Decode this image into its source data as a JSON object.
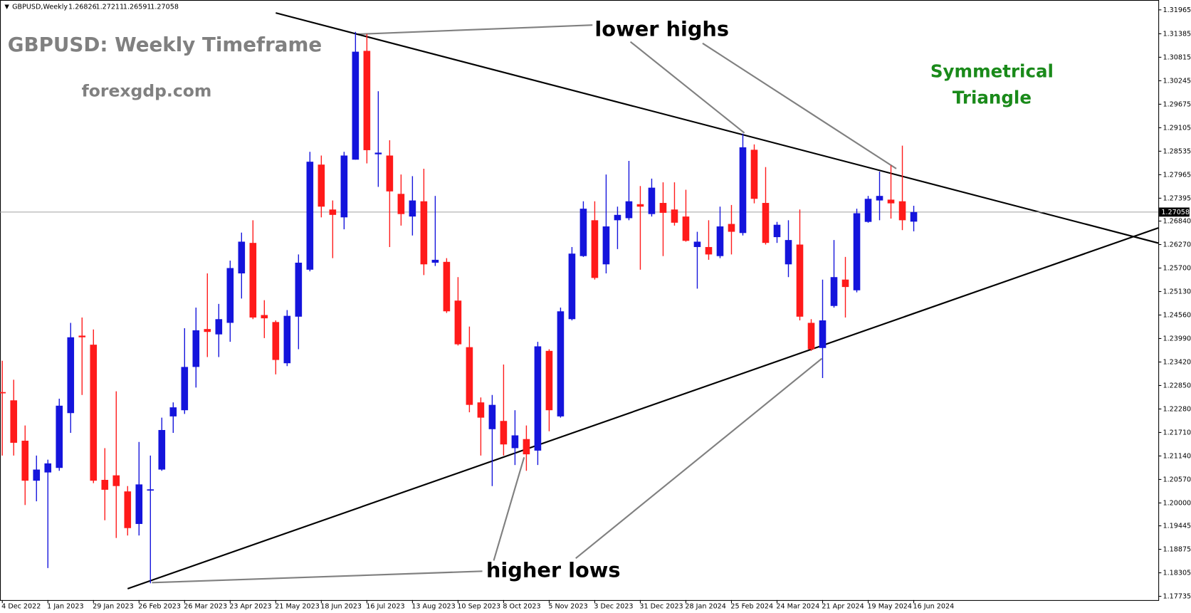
{
  "header": {
    "symbol": "GBPUSD,Weekly",
    "open": 1.26826,
    "high": 1.27211,
    "low": 1.26591,
    "close": 1.27058
  },
  "chart_data": {
    "type": "candlestick",
    "title": "GBPUSD: Weekly Timeframe",
    "subtitle": "forexgdp.com",
    "annotations": {
      "upper": "lower highs",
      "lower": "higher lows",
      "pattern": [
        "Symmetrical",
        "Triangle"
      ]
    },
    "categories": [
      "4 Dec 2022",
      null,
      null,
      null,
      "1 Jan 2023",
      null,
      null,
      null,
      "29 Jan 2023",
      null,
      null,
      null,
      "26 Feb 2023",
      null,
      null,
      null,
      "26 Mar 2023",
      null,
      null,
      null,
      "23 Apr 2023",
      null,
      null,
      null,
      "21 May 2023",
      null,
      null,
      null,
      "18 Jun 2023",
      null,
      null,
      null,
      "16 Jul 2023",
      null,
      null,
      null,
      "13 Aug 2023",
      null,
      null,
      null,
      "10 Sep 2023",
      null,
      null,
      null,
      "8 Oct 2023",
      null,
      null,
      null,
      "5 Nov 2023",
      null,
      null,
      null,
      "3 Dec 2023",
      null,
      null,
      null,
      "31 Dec 2023",
      null,
      null,
      null,
      "28 Jan 2024",
      null,
      null,
      null,
      "25 Feb 2024",
      null,
      null,
      null,
      "24 Mar 2024",
      null,
      null,
      null,
      "21 Apr 2024",
      null,
      null,
      null,
      "19 May 2024",
      null,
      null,
      null,
      "16 Jun 2024"
    ],
    "open": [
      1.2269,
      1.2249,
      1.2151,
      1.2054,
      1.2074,
      1.2085,
      1.2218,
      1.2406,
      1.2384,
      1.2056,
      1.2067,
      1.2028,
      1.1949,
      1.203,
      1.2081,
      1.221,
      1.2225,
      1.233,
      1.2422,
      1.2409,
      1.2437,
      1.2557,
      1.2631,
      1.2456,
      1.2439,
      1.2339,
      1.2452,
      1.2566,
      1.2821,
      1.2712,
      1.2693,
      1.2833,
      1.3097,
      1.2846,
      1.2843,
      1.275,
      1.2695,
      1.2732,
      1.2583,
      1.2585,
      1.2491,
      1.2378,
      1.2244,
      1.2179,
      1.2199,
      1.2133,
      1.2155,
      1.2127,
      1.2369,
      1.221,
      1.2446,
      1.2599,
      1.2686,
      1.2579,
      1.2686,
      1.2691,
      1.2725,
      1.2701,
      1.2728,
      1.2712,
      1.2695,
      1.2621,
      1.2621,
      1.2599,
      1.2677,
      1.2655,
      1.2857,
      1.2728,
      1.2645,
      1.2579,
      1.2627,
      1.2437,
      1.2376,
      1.2478,
      1.2542,
      1.2516,
      1.2682,
      1.2734,
      1.2736,
      1.2732,
      1.26826
    ],
    "high": [
      1.2345,
      1.2299,
      1.2188,
      1.2115,
      1.2105,
      1.2253,
      1.2437,
      1.245,
      1.2421,
      1.2133,
      1.2271,
      1.2041,
      1.2148,
      1.2115,
      1.2207,
      1.2244,
      1.2424,
      1.2474,
      1.2557,
      1.2483,
      1.2588,
      1.2656,
      1.2686,
      1.2492,
      1.2443,
      1.2468,
      1.2603,
      1.2852,
      1.2843,
      1.2734,
      1.2852,
      1.3143,
      1.3138,
      1.2999,
      1.288,
      1.2797,
      1.2793,
      1.2811,
      1.2745,
      1.2594,
      1.2548,
      1.2428,
      1.2256,
      1.2262,
      1.2336,
      1.2225,
      1.2188,
      1.2391,
      1.2373,
      1.2474,
      1.2621,
      1.2732,
      1.2732,
      1.2797,
      1.2719,
      1.283,
      1.2769,
      1.2787,
      1.2778,
      1.2778,
      1.276,
      1.2658,
      1.2686,
      1.2719,
      1.2723,
      1.2896,
      1.287,
      1.2815,
      1.2682,
      1.2686,
      1.2712,
      1.2446,
      1.2542,
      1.2638,
      1.2597,
      1.2714,
      1.2745,
      1.2804,
      1.2819,
      1.2867,
      1.27211
    ],
    "low": [
      1.2115,
      1.2115,
      1.1995,
      1.2004,
      1.1842,
      1.2078,
      1.217,
      1.2262,
      1.2048,
      1.1958,
      1.1915,
      1.1921,
      1.1921,
      1.1805,
      1.2078,
      1.217,
      1.2216,
      1.228,
      1.2354,
      1.2354,
      1.2391,
      1.2496,
      1.2446,
      1.24,
      1.2312,
      1.2332,
      1.2373,
      1.2562,
      1.2693,
      1.2594,
      1.2664,
      1.2833,
      1.2824,
      1.2767,
      1.2621,
      1.2673,
      1.2649,
      1.2553,
      1.2575,
      1.2461,
      1.2382,
      1.222,
      1.2115,
      1.2041,
      1.2115,
      1.2092,
      1.2078,
      1.2092,
      1.2174,
      1.2207,
      1.2443,
      1.2597,
      1.2542,
      1.2557,
      1.2616,
      1.2686,
      1.2566,
      1.2695,
      1.2599,
      1.2673,
      1.2634,
      1.252,
      1.259,
      1.2594,
      1.2603,
      1.2649,
      1.2727,
      1.2627,
      1.2631,
      1.2548,
      1.2443,
      1.2369,
      1.2303,
      1.2474,
      1.245,
      1.2511,
      1.268,
      1.2686,
      1.269,
      1.2662,
      1.26591
    ],
    "close": [
      1.2266,
      1.2146,
      1.2054,
      1.2081,
      1.2096,
      1.2236,
      1.2402,
      1.2402,
      1.2054,
      1.2032,
      1.2041,
      1.1939,
      1.2045,
      1.2033,
      1.2177,
      1.2232,
      1.233,
      1.2419,
      1.2415,
      1.2446,
      1.257,
      1.2634,
      1.245,
      1.2448,
      1.2347,
      1.2454,
      1.2583,
      1.2828,
      1.2719,
      1.2699,
      1.2843,
      1.3095,
      1.2856,
      1.285,
      1.2756,
      1.2701,
      1.2734,
      1.2579,
      1.259,
      1.2465,
      1.2385,
      1.2238,
      1.2207,
      1.2238,
      1.2142,
      1.2164,
      1.2118,
      1.238,
      1.2225,
      1.2465,
      1.2605,
      1.2714,
      1.2546,
      1.2671,
      1.2699,
      1.2732,
      1.2719,
      1.2765,
      1.2704,
      1.268,
      1.2636,
      1.2634,
      1.2603,
      1.2671,
      1.2658,
      1.2863,
      1.2738,
      1.2631,
      1.2675,
      1.2638,
      1.2452,
      1.2373,
      1.2443,
      1.2548,
      1.2524,
      1.2703,
      1.2738,
      1.2745,
      1.2727,
      1.2686,
      1.27058
    ],
    "up_color": "#1414dc",
    "down_color": "#ff1a1a",
    "last_price": 1.27058,
    "ylim": [
      1.17643,
      1.32112
    ],
    "yticks": [
      1.31965,
      1.31385,
      1.30815,
      1.30245,
      1.29675,
      1.29105,
      1.28535,
      1.27965,
      1.27395,
      {
        "value": 1.2684,
        "label": "1.26840"
      },
      {
        "value": 1.2627,
        "label": "1.26270"
      },
      {
        "value": 1.257,
        "label": "1.25700"
      },
      {
        "value": 1.2513,
        "label": "1.25130"
      },
      {
        "value": 1.2456,
        "label": "1.24560"
      },
      {
        "value": 1.2399,
        "label": "1.23990"
      },
      {
        "value": 1.2342,
        "label": "1.23420"
      },
      {
        "value": 1.2285,
        "label": "1.22850"
      },
      {
        "value": 1.2228,
        "label": "1.22280"
      },
      {
        "value": 1.2171,
        "label": "1.21710"
      },
      {
        "value": 1.2114,
        "label": "1.21140"
      },
      {
        "value": 1.2057,
        "label": "1.20570"
      },
      {
        "value": 1.2,
        "label": "1.20000"
      },
      1.19445,
      1.18875,
      1.18305,
      1.17735
    ],
    "grid": false
  }
}
